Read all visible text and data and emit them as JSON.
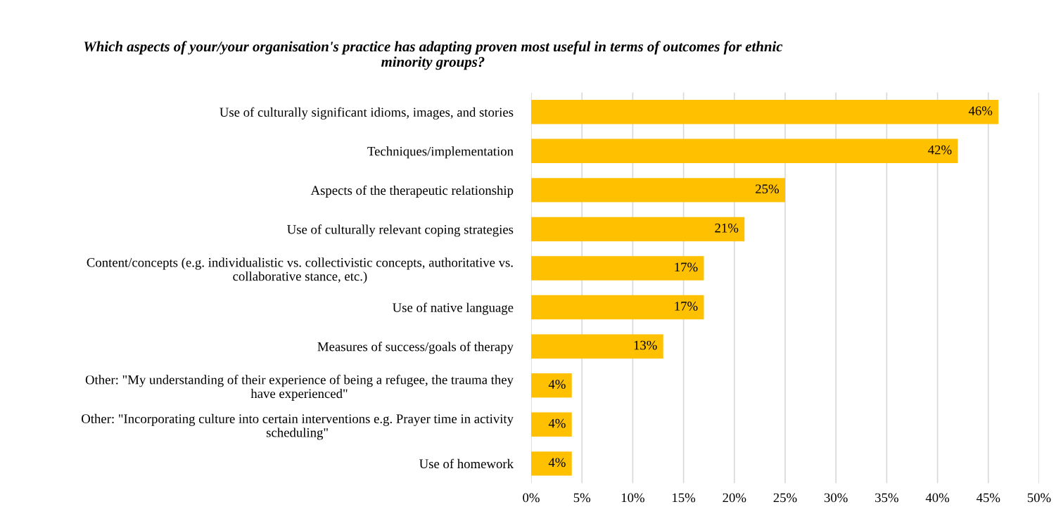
{
  "chart_data": {
    "type": "bar",
    "orientation": "horizontal",
    "title": "Which aspects of your/your organisation's practice has adapting proven most useful in terms of outcomes for ethnic\nminority groups?",
    "categories": [
      "Use of culturally significant idioms, images, and stories",
      "Techniques/implementation",
      "Aspects of the therapeutic relationship",
      "Use of culturally relevant coping strategies",
      "Content/concepts (e.g. individualistic vs. collectivistic concepts, authoritative vs.\ncollaborative stance, etc.)",
      "Use of native language",
      "Measures of success/goals of therapy",
      "Other: \"My understanding of their experience of being a refugee, the trauma they\nhave experienced\"",
      "Other: \"Incorporating culture into certain interventions e.g. Prayer time in activity\nscheduling\"",
      "Use of homework"
    ],
    "values": [
      46,
      42,
      25,
      21,
      17,
      17,
      13,
      4,
      4,
      4
    ],
    "value_labels": [
      "46%",
      "42%",
      "25%",
      "21%",
      "17%",
      "17%",
      "13%",
      "4%",
      "4%",
      "4%"
    ],
    "color": "#ffc000",
    "xlim": [
      0,
      50
    ],
    "xticks": [
      {
        "value": 0,
        "label": "0%"
      },
      {
        "value": 5,
        "label": "5%"
      },
      {
        "value": 10,
        "label": "10%"
      },
      {
        "value": 15,
        "label": "15%"
      },
      {
        "value": 20,
        "label": "20%"
      },
      {
        "value": 25,
        "label": "25%"
      },
      {
        "value": 30,
        "label": "30%"
      },
      {
        "value": 35,
        "label": "35%"
      },
      {
        "value": 40,
        "label": "40%"
      },
      {
        "value": 45,
        "label": "45%"
      },
      {
        "value": 50,
        "label": "50%"
      }
    ],
    "grid": "x"
  }
}
